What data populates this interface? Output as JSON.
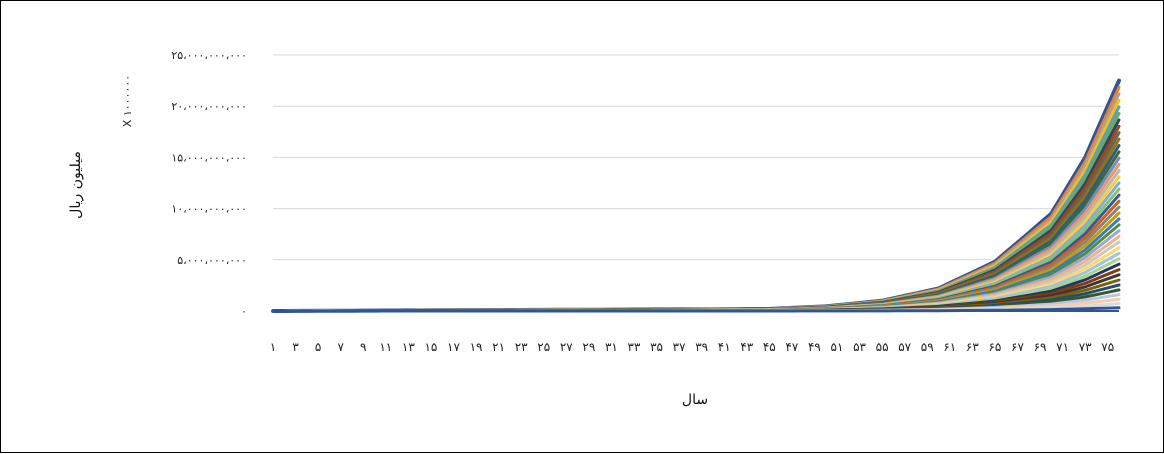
{
  "chart_data": {
    "type": "area",
    "title": "",
    "xlabel": "سال",
    "ylabel": "میلیون ریال",
    "y_multiplier": "X ۱۰۰۰۰۰۰",
    "ylim": [
      0,
      25000000000
    ],
    "grid": true,
    "legend": "none",
    "y_ticks": [
      0,
      5000000000,
      10000000000,
      15000000000,
      20000000000,
      25000000000
    ],
    "y_tick_labels": [
      "۰",
      "۵،۰۰۰،۰۰۰،۰۰۰",
      "۱۰،۰۰۰،۰۰۰،۰۰۰",
      "۱۵،۰۰۰،۰۰۰،۰۰۰",
      "۲۰،۰۰۰،۰۰۰،۰۰۰",
      "۲۵،۰۰۰،۰۰۰،۰۰۰"
    ],
    "x_tick_labels": [
      "۱",
      "۳",
      "۵",
      "۷",
      "۹",
      "۱۱",
      "۱۳",
      "۱۵",
      "۱۷",
      "۱۹",
      "۲۱",
      "۲۳",
      "۲۵",
      "۲۷",
      "۲۹",
      "۳۱",
      "۳۳",
      "۳۵",
      "۳۷",
      "۳۹",
      "۴۱",
      "۴۳",
      "۴۵",
      "۴۷",
      "۴۹",
      "۵۱",
      "۵۳",
      "۵۵",
      "۵۷",
      "۵۹",
      "۶۱",
      "۶۳",
      "۶۵",
      "۶۷",
      "۶۹",
      "۷۱",
      "۷۳",
      "۷۵"
    ],
    "x_count": 76,
    "top_series": {
      "x": [
        1,
        45,
        50,
        55,
        60,
        65,
        70,
        73,
        76
      ],
      "y": [
        0,
        200000000,
        450000000,
        1000000000,
        2200000000,
        4800000000,
        9500000000,
        15000000000,
        22500000000
      ]
    },
    "n_series": 40
  },
  "colors": [
    "#4472C4",
    "#ED7D31",
    "#A5A5A5",
    "#FFC000",
    "#5B9BD5",
    "#70AD47",
    "#264478",
    "#9E480E",
    "#636363",
    "#997300",
    "#255E91",
    "#43682B",
    "#698ED0",
    "#F1975A",
    "#B7B7B7",
    "#FFCD33",
    "#7CAFDD",
    "#8CC168",
    "#335AA1",
    "#D26012",
    "#848484",
    "#CC9A00",
    "#327DC2",
    "#5A8A39",
    "#8FAADC",
    "#F4B183",
    "#C9C9C9",
    "#FFD966",
    "#9DC3E6",
    "#A9D18E",
    "#1F3864",
    "#843C0C",
    "#3B3838",
    "#7F6000",
    "#1F4E79",
    "#385723",
    "#B4C7E7",
    "#F8CBAD",
    "#DBDBDB",
    "#2F5597"
  ]
}
